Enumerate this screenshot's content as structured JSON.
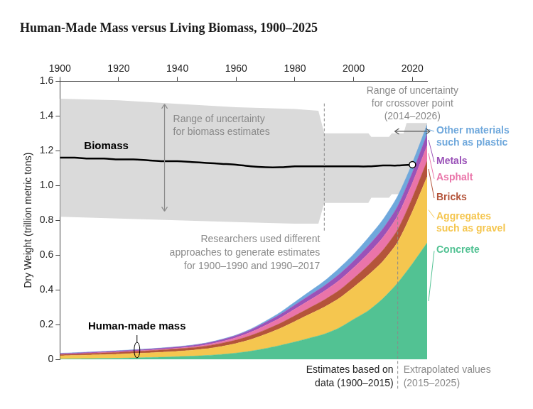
{
  "chart_data": {
    "type": "area",
    "title": "Human-Made Mass versus Living Biomass, 1900–2025",
    "y_label": "Dry Weight (trillion metric tons)",
    "x": [
      1900,
      1905,
      1910,
      1915,
      1920,
      1925,
      1930,
      1935,
      1940,
      1945,
      1950,
      1955,
      1960,
      1965,
      1970,
      1975,
      1980,
      1985,
      1990,
      1995,
      2000,
      2005,
      2010,
      2015,
      2020,
      2025
    ],
    "xlim": [
      1900,
      2025
    ],
    "xticks": [
      1900,
      1920,
      1940,
      1960,
      1980,
      2000,
      2020
    ],
    "ylim": [
      0,
      1.6
    ],
    "yticks": [
      0,
      0.2,
      0.4,
      0.6,
      0.8,
      {
        "value": 1,
        "label": "1.0"
      },
      1.2,
      1.4,
      1.6
    ],
    "grid": false,
    "stacked": true,
    "series": [
      {
        "name": "Concrete",
        "type": "area",
        "color": "#52c293",
        "values": [
          0.002,
          0.003,
          0.004,
          0.005,
          0.006,
          0.008,
          0.01,
          0.012,
          0.015,
          0.018,
          0.022,
          0.028,
          0.036,
          0.047,
          0.062,
          0.08,
          0.1,
          0.122,
          0.145,
          0.18,
          0.23,
          0.28,
          0.35,
          0.44,
          0.55,
          0.67
        ]
      },
      {
        "name": "Aggregates such as gravel",
        "type": "area",
        "color": "#f5c64f",
        "values": [
          0.018,
          0.019,
          0.021,
          0.022,
          0.024,
          0.026,
          0.027,
          0.029,
          0.031,
          0.034,
          0.039,
          0.046,
          0.055,
          0.067,
          0.082,
          0.098,
          0.118,
          0.137,
          0.155,
          0.17,
          0.185,
          0.205,
          0.215,
          0.235,
          0.3,
          0.38
        ]
      },
      {
        "name": "Bricks",
        "type": "area",
        "color": "#b4543a",
        "values": [
          0.008,
          0.008,
          0.009,
          0.01,
          0.01,
          0.011,
          0.012,
          0.013,
          0.014,
          0.015,
          0.016,
          0.018,
          0.02,
          0.023,
          0.026,
          0.029,
          0.033,
          0.037,
          0.042,
          0.046,
          0.051,
          0.057,
          0.064,
          0.072,
          0.08,
          0.09
        ]
      },
      {
        "name": "Asphalt",
        "type": "area",
        "color": "#ea74a9",
        "values": [
          0.001,
          0.001,
          0.001,
          0.002,
          0.002,
          0.002,
          0.003,
          0.003,
          0.004,
          0.005,
          0.007,
          0.01,
          0.014,
          0.019,
          0.025,
          0.031,
          0.038,
          0.044,
          0.05,
          0.056,
          0.061,
          0.067,
          0.073,
          0.079,
          0.085,
          0.09
        ]
      },
      {
        "name": "Metals",
        "type": "area",
        "color": "#9a52b8",
        "values": [
          0.004,
          0.005,
          0.005,
          0.005,
          0.006,
          0.006,
          0.006,
          0.007,
          0.007,
          0.008,
          0.009,
          0.01,
          0.012,
          0.014,
          0.017,
          0.02,
          0.024,
          0.028,
          0.031,
          0.036,
          0.039,
          0.045,
          0.05,
          0.056,
          0.06,
          0.065
        ]
      },
      {
        "name": "Other materials such as plastic",
        "type": "area",
        "color": "#6fa8dc",
        "values": [
          0.002,
          0.002,
          0.002,
          0.002,
          0.002,
          0.002,
          0.002,
          0.002,
          0.002,
          0.002,
          0.002,
          0.003,
          0.003,
          0.005,
          0.008,
          0.012,
          0.017,
          0.022,
          0.027,
          0.035,
          0.039,
          0.046,
          0.053,
          0.058,
          0.055,
          0.055
        ]
      },
      {
        "name": "Biomass",
        "type": "line",
        "color": "#000000",
        "values": [
          1.16,
          1.16,
          1.155,
          1.155,
          1.15,
          1.15,
          1.145,
          1.14,
          1.14,
          1.135,
          1.13,
          1.125,
          1.12,
          1.11,
          1.105,
          1.105,
          1.11,
          1.11,
          1.11,
          1.11,
          1.11,
          1.11,
          1.115,
          1.115,
          1.12,
          null
        ]
      }
    ],
    "biomass_range": {
      "label": "Range of uncertainty for biomass estimates",
      "color": "#dadada",
      "x": [
        1900,
        1920,
        1940,
        1960,
        1980,
        1988,
        1990,
        2005,
        2006,
        2012,
        2013,
        2017,
        2018,
        2025
      ],
      "upper": [
        1.5,
        1.49,
        1.47,
        1.45,
        1.44,
        1.43,
        1.3,
        1.3,
        1.28,
        1.28,
        1.3,
        1.3,
        1.36,
        1.36
      ],
      "lower": [
        0.82,
        0.81,
        0.8,
        0.79,
        0.78,
        0.78,
        0.9,
        0.9,
        0.93,
        0.93,
        0.95,
        0.95,
        1.0,
        1.0
      ]
    },
    "human_made_label": "Human-made mass",
    "method_note": "Researchers used different approaches to generate estimates for 1900–1990 and 1990–2017",
    "vlines": [
      1990,
      2015
    ],
    "crossover": {
      "x": 2020,
      "y": 1.12,
      "range": [
        2014,
        2026
      ],
      "label": "Range of uncertainty for crossover point (2014–2026)"
    },
    "data_note": {
      "left": "Estimates based on data (1900–2015)",
      "right": "Extrapolated values (2015–2025)"
    }
  }
}
